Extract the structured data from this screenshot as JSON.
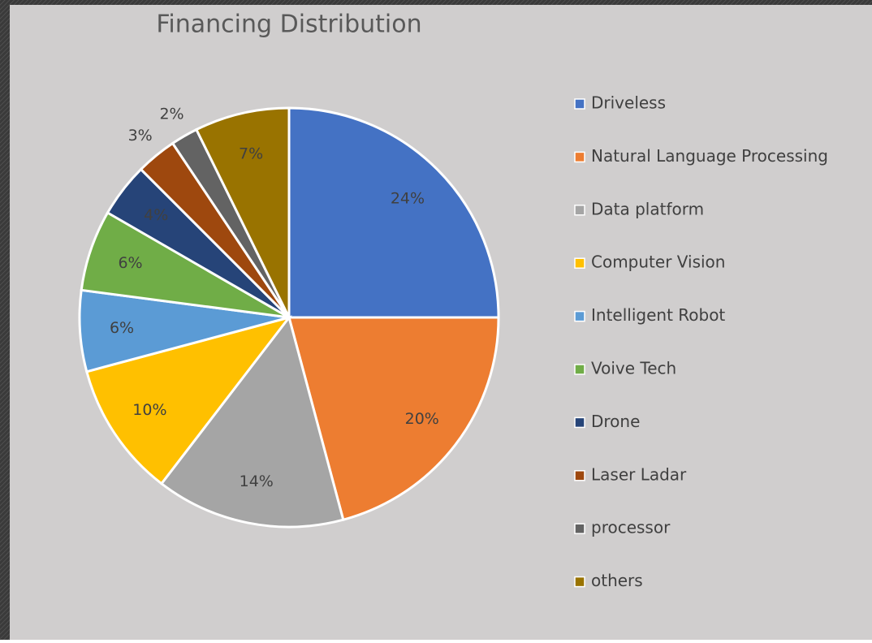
{
  "chart_data": {
    "type": "pie",
    "title": "Financing Distribution",
    "categories": [
      "Driveless",
      "Natural Language Processing",
      "Data platform",
      "Computer Vision",
      "Intelligent Robot",
      "Voive Tech",
      "Drone",
      "Laser Ladar",
      "processor",
      "others"
    ],
    "values": [
      24,
      20,
      14,
      10,
      6,
      6,
      4,
      3,
      2,
      7
    ],
    "value_labels": [
      "24%",
      "20%",
      "14%",
      "10%",
      "6%",
      "6%",
      "4%",
      "3%",
      "2%",
      "7%"
    ],
    "colors": [
      "#4472c4",
      "#ed7d31",
      "#a5a5a5",
      "#ffc000",
      "#5b9bd5",
      "#70ad47",
      "#264478",
      "#9e480e",
      "#636363",
      "#997300"
    ],
    "legend": "right"
  }
}
